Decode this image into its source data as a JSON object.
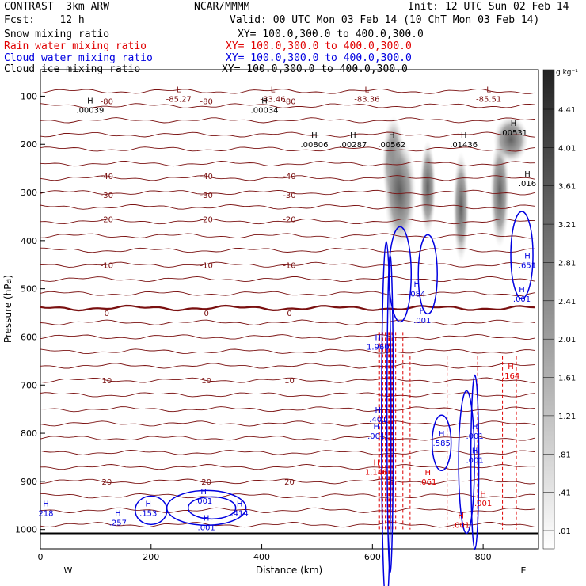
{
  "header": {
    "model": "CONTRAST  3km ARW",
    "org": "NCAR/MMMM",
    "init": "Init: 12 UTC Sun 02 Feb 14",
    "fcst": "Fcst:    12 h",
    "valid": "Valid: 00 UTC Mon 03 Feb 14 (10 ChT Mon 03 Feb 14)",
    "fields": [
      {
        "name": "Snow mixing ratio",
        "xy": "XY= 100.0,300.0 to 400.0,300.0",
        "color": "#000000"
      },
      {
        "name": "Rain water mixing ratio",
        "xy": "XY= 100.0,300.0 to 400.0,300.0",
        "color": "#e00000"
      },
      {
        "name": "Cloud water mixing ratio",
        "xy": "XY= 100.0,300.0 to 400.0,300.0",
        "color": "#0000e0"
      },
      {
        "name": "Cloud ice mixing ratio",
        "xy": "XY= 100.0,300.0 to 400.0,300.0",
        "color": "#000000"
      }
    ]
  },
  "chart_data": {
    "type": "contour",
    "xlabel": "Distance (km)",
    "ylabel": "Pressure (hPa)",
    "xlim": [
      0,
      900
    ],
    "ylim": [
      1040,
      45
    ],
    "x_ticks": [
      0,
      200,
      400,
      600,
      800
    ],
    "y_ticks": [
      100,
      200,
      300,
      400,
      500,
      600,
      700,
      800,
      900,
      1000
    ],
    "x_end_labels": {
      "left": "W",
      "right": "E"
    },
    "colorbar": {
      "unit": "g kg⁻¹",
      "ticks": [
        "4.41",
        "4.01",
        "3.61",
        "3.21",
        "2.81",
        "2.41",
        "2.01",
        "1.61",
        "1.21",
        ".81",
        ".41",
        ".01"
      ]
    },
    "temperature_contours": [
      {
        "label": "-80",
        "p": 110
      },
      {
        "label": "-40",
        "p": 265
      },
      {
        "label": "-30",
        "p": 305
      },
      {
        "label": "-20",
        "p": 355
      },
      {
        "label": "-10",
        "p": 450
      },
      {
        "label": "0",
        "p": 550
      },
      {
        "label": "10",
        "p": 690
      },
      {
        "label": "20",
        "p": 900
      }
    ],
    "extrema_labels": [
      {
        "type": "L",
        "value": "-85.27",
        "x": 250,
        "p": 105
      },
      {
        "type": "L",
        "value": "-83.46",
        "x": 420,
        "p": 105
      },
      {
        "type": "L",
        "value": "-83.36",
        "x": 590,
        "p": 105
      },
      {
        "type": "L",
        "value": "-85.51",
        "x": 810,
        "p": 105
      },
      {
        "type": "H",
        "value": ".00039",
        "x": 90,
        "p": 128
      },
      {
        "type": "H",
        "value": ".00034",
        "x": 405,
        "p": 128
      },
      {
        "type": "H",
        "value": ".00806",
        "x": 495,
        "p": 200
      },
      {
        "type": "H",
        "value": ".00287",
        "x": 565,
        "p": 200
      },
      {
        "type": "H",
        "value": ".00562",
        "x": 635,
        "p": 200
      },
      {
        "type": "H",
        "value": ".01436",
        "x": 765,
        "p": 200
      },
      {
        "type": "H",
        "value": ".00531",
        "x": 855,
        "p": 175
      },
      {
        "type": "H",
        "value": ".016",
        "x": 880,
        "p": 280
      },
      {
        "type": "H",
        "value": ".084",
        "x": 680,
        "p": 510
      },
      {
        "type": "H",
        "value": ".001",
        "x": 690,
        "p": 565
      },
      {
        "type": "H",
        "value": ".651",
        "x": 880,
        "p": 450
      },
      {
        "type": "H",
        "value": ".001",
        "x": 870,
        "p": 520
      },
      {
        "type": "H",
        "value": "1.960",
        "x": 610,
        "p": 620
      },
      {
        "type": "H",
        "value": ".164",
        "x": 850,
        "p": 680
      },
      {
        "type": "H",
        "value": ".401",
        "x": 610,
        "p": 770
      },
      {
        "type": "H",
        "value": ".001",
        "x": 607,
        "p": 805
      },
      {
        "type": "H",
        "value": ".585",
        "x": 725,
        "p": 820
      },
      {
        "type": "H",
        "value": ".001",
        "x": 785,
        "p": 805
      },
      {
        "type": "H",
        "value": ".001",
        "x": 785,
        "p": 855
      },
      {
        "type": "H",
        "value": "1.146",
        "x": 607,
        "p": 880
      },
      {
        "type": "H",
        "value": ".061",
        "x": 700,
        "p": 900
      },
      {
        "type": "H",
        "value": ".001",
        "x": 800,
        "p": 945
      },
      {
        "type": "H",
        "value": ".001",
        "x": 760,
        "p": 990
      },
      {
        "type": "H",
        "value": "218",
        "x": 10,
        "p": 965
      },
      {
        "type": "H",
        "value": ".257",
        "x": 140,
        "p": 985
      },
      {
        "type": "H",
        "value": ".153",
        "x": 195,
        "p": 965
      },
      {
        "type": "H",
        "value": ".001",
        "x": 295,
        "p": 940
      },
      {
        "type": "H",
        "value": ".001",
        "x": 300,
        "p": 995
      },
      {
        "type": "H",
        "value": ".414",
        "x": 360,
        "p": 965
      }
    ]
  }
}
